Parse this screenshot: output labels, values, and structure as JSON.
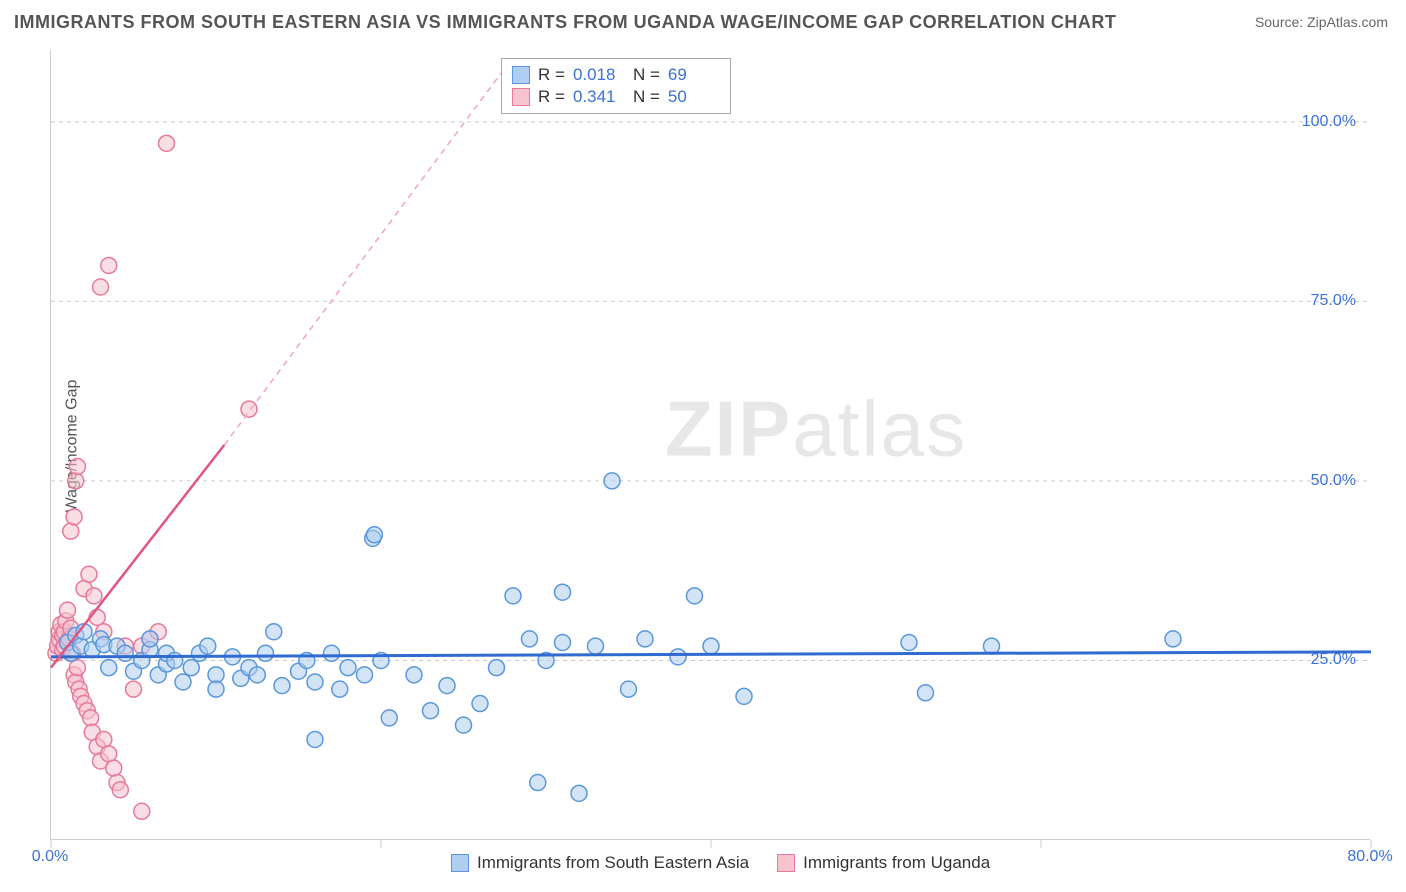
{
  "title": "IMMIGRANTS FROM SOUTH EASTERN ASIA VS IMMIGRANTS FROM UGANDA WAGE/INCOME GAP CORRELATION CHART",
  "source": "Source: ZipAtlas.com",
  "ylabel": "Wage/Income Gap",
  "watermark_bold": "ZIP",
  "watermark_rest": "atlas",
  "chart": {
    "type": "scatter",
    "xlim": [
      0,
      80
    ],
    "ylim": [
      0,
      110
    ],
    "x_ticks": [
      0,
      20,
      40,
      60,
      80
    ],
    "y_ticks": [
      25,
      50,
      75,
      100
    ],
    "x_tick_labels": [
      "0.0%",
      "",
      "",
      "",
      "80.0%"
    ],
    "y_tick_labels": [
      "25.0%",
      "50.0%",
      "75.0%",
      "100.0%"
    ],
    "grid_color": "#cccccc",
    "background_color": "#ffffff",
    "marker_radius": 8,
    "marker_stroke_width": 1.5,
    "series": [
      {
        "name": "Immigrants from South Eastern Asia",
        "key": "sea",
        "fill": "#afcef1",
        "stroke": "#5a97dc",
        "fill_opacity": 0.55,
        "r_value": "0.018",
        "n_value": "69",
        "trend": {
          "x1": 0,
          "y1": 25.5,
          "x2": 80,
          "y2": 26.2,
          "color": "#2f6bd0",
          "width": 3,
          "dash": ""
        },
        "points": [
          [
            1.0,
            27.5
          ],
          [
            1.2,
            26.0
          ],
          [
            1.5,
            28.5
          ],
          [
            1.8,
            27.0
          ],
          [
            2.0,
            29.0
          ],
          [
            2.5,
            26.5
          ],
          [
            3.0,
            28.0
          ],
          [
            3.2,
            27.2
          ],
          [
            3.5,
            24.0
          ],
          [
            4.0,
            27.0
          ],
          [
            4.5,
            26.0
          ],
          [
            5.0,
            23.5
          ],
          [
            5.5,
            25.0
          ],
          [
            6.0,
            26.5
          ],
          [
            6.0,
            28.0
          ],
          [
            6.5,
            23.0
          ],
          [
            7.0,
            24.5
          ],
          [
            7.0,
            26.0
          ],
          [
            7.5,
            25.0
          ],
          [
            8.0,
            22.0
          ],
          [
            8.5,
            24.0
          ],
          [
            9.0,
            26.0
          ],
          [
            9.5,
            27.0
          ],
          [
            10.0,
            23.0
          ],
          [
            10.0,
            21.0
          ],
          [
            11.0,
            25.5
          ],
          [
            11.5,
            22.5
          ],
          [
            12.0,
            24.0
          ],
          [
            12.5,
            23.0
          ],
          [
            13.0,
            26.0
          ],
          [
            13.5,
            29.0
          ],
          [
            14.0,
            21.5
          ],
          [
            15.0,
            23.5
          ],
          [
            15.5,
            25.0
          ],
          [
            16.0,
            22.0
          ],
          [
            16.0,
            14.0
          ],
          [
            17.0,
            26.0
          ],
          [
            17.5,
            21.0
          ],
          [
            18.0,
            24.0
          ],
          [
            19.0,
            23.0
          ],
          [
            19.5,
            42.0
          ],
          [
            19.6,
            42.5
          ],
          [
            20.0,
            25.0
          ],
          [
            20.5,
            17.0
          ],
          [
            22.0,
            23.0
          ],
          [
            23.0,
            18.0
          ],
          [
            24.0,
            21.5
          ],
          [
            25.0,
            16.0
          ],
          [
            26.0,
            19.0
          ],
          [
            27.0,
            24.0
          ],
          [
            28.0,
            34.0
          ],
          [
            29.0,
            28.0
          ],
          [
            29.5,
            8.0
          ],
          [
            30.0,
            25.0
          ],
          [
            31.0,
            34.5
          ],
          [
            31.0,
            27.5
          ],
          [
            32.0,
            6.5
          ],
          [
            33.0,
            27.0
          ],
          [
            34.0,
            50.0
          ],
          [
            35.0,
            21.0
          ],
          [
            36.0,
            28.0
          ],
          [
            38.0,
            25.5
          ],
          [
            39.0,
            34.0
          ],
          [
            40.0,
            27.0
          ],
          [
            42.0,
            20.0
          ],
          [
            52.0,
            27.5
          ],
          [
            53.0,
            20.5
          ],
          [
            57.0,
            27.0
          ],
          [
            68.0,
            28.0
          ]
        ]
      },
      {
        "name": "Immigrants from Uganda",
        "key": "uganda",
        "fill": "#f6c3cf",
        "stroke": "#e77a9b",
        "fill_opacity": 0.55,
        "r_value": "0.341",
        "n_value": "50",
        "trend": {
          "x1": 0,
          "y1": 24.0,
          "x2": 10.5,
          "y2": 55.0,
          "color": "#e15584",
          "width": 2.5,
          "dash": ""
        },
        "trend_ext": {
          "x1": 10.5,
          "y1": 55.0,
          "x2": 28.0,
          "y2": 109.0,
          "color": "#f1a5bb",
          "width": 1.5,
          "dash": "6 5"
        },
        "points": [
          [
            0.3,
            26
          ],
          [
            0.4,
            27
          ],
          [
            0.5,
            28
          ],
          [
            0.5,
            29
          ],
          [
            0.6,
            30
          ],
          [
            0.7,
            26.5
          ],
          [
            0.7,
            28.5
          ],
          [
            0.8,
            27
          ],
          [
            0.8,
            29
          ],
          [
            0.9,
            30.5
          ],
          [
            1.0,
            27.5
          ],
          [
            1.0,
            32
          ],
          [
            1.1,
            28
          ],
          [
            1.2,
            29.5
          ],
          [
            1.3,
            26
          ],
          [
            1.4,
            23
          ],
          [
            1.5,
            22
          ],
          [
            1.6,
            24
          ],
          [
            1.7,
            21
          ],
          [
            1.8,
            20
          ],
          [
            2.0,
            19
          ],
          [
            2.2,
            18
          ],
          [
            2.4,
            17
          ],
          [
            2.5,
            15
          ],
          [
            2.8,
            13
          ],
          [
            3.0,
            11
          ],
          [
            3.2,
            14
          ],
          [
            3.5,
            12
          ],
          [
            3.8,
            10
          ],
          [
            4.0,
            8
          ],
          [
            4.2,
            7
          ],
          [
            5.0,
            21
          ],
          [
            5.5,
            27
          ],
          [
            6.0,
            28
          ],
          [
            6.5,
            29
          ],
          [
            7.0,
            97
          ],
          [
            1.2,
            43
          ],
          [
            1.4,
            45
          ],
          [
            1.5,
            50
          ],
          [
            1.6,
            52
          ],
          [
            3.0,
            77
          ],
          [
            3.5,
            80
          ],
          [
            2.0,
            35
          ],
          [
            2.3,
            37
          ],
          [
            2.6,
            34
          ],
          [
            2.8,
            31
          ],
          [
            3.2,
            29
          ],
          [
            4.5,
            27
          ],
          [
            5.5,
            4
          ],
          [
            12.0,
            60
          ]
        ]
      }
    ]
  },
  "legend_top": {
    "r_label": "R =",
    "n_label": "N ="
  },
  "legend_bottom": {
    "items": [
      {
        "label": "Immigrants from South Eastern Asia",
        "fill": "#afcef1",
        "stroke": "#5a97dc"
      },
      {
        "label": "Immigrants from Uganda",
        "fill": "#f6c3cf",
        "stroke": "#e77a9b"
      }
    ]
  }
}
